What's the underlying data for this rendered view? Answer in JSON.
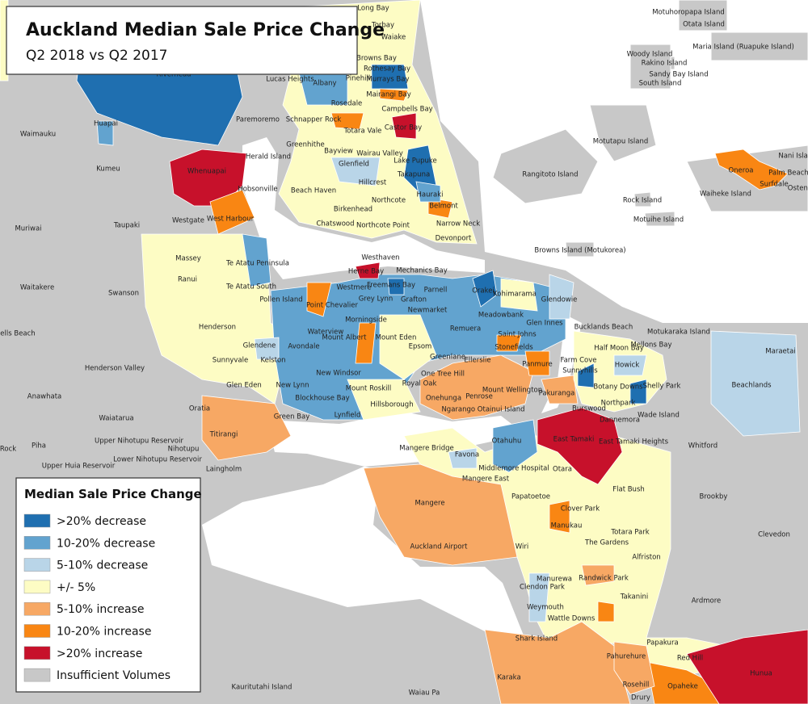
{
  "title": "Auckland Median Sale Price Change",
  "subtitle": "Q2 2018 vs Q2 2017",
  "legend": {
    "title": "Median Sale Price Change",
    "items": [
      {
        "label": ">20% decrease",
        "color": "#1f6fb0"
      },
      {
        "label": "10-20% decrease",
        "color": "#62a3cf"
      },
      {
        "label": "5-10% decrease",
        "color": "#b9d5e8"
      },
      {
        "label": "+/- 5%",
        "color": "#fdfcc4"
      },
      {
        "label": "5-10% increase",
        "color": "#f7a864"
      },
      {
        "label": "10-20% increase",
        "color": "#f98613"
      },
      {
        "label": ">20% increase",
        "color": "#c7112b"
      },
      {
        "label": "Insufficient Volumes",
        "color": "#c8c8c8"
      }
    ]
  },
  "places": [
    "Long Bay",
    "Torbay",
    "Waiake",
    "Browns Bay",
    "Rothesay Bay",
    "Lucas Heights",
    "Albany",
    "Pinehill",
    "Murrays Bay",
    "Riverhead",
    "Mairangi Bay",
    "Rosedale",
    "Campbells Bay",
    "Paremoremo",
    "Schnapper Rock",
    "Totara Vale",
    "Castor Bay",
    "Huapai",
    "Waimauku",
    "Greenhithe",
    "Bayview",
    "Wairau Valley",
    "Herald Island",
    "Lake Pupuke",
    "Glenfield",
    "Kumeu",
    "Takapuna",
    "Whenuapai",
    "Hobsonville",
    "Beach Haven",
    "Hillcrest",
    "Hauraki",
    "Northcote",
    "Belmont",
    "Birkenhead",
    "Westgate",
    "West Harbour",
    "Taupaki",
    "Chatswood",
    "Northcote Point",
    "Narrow Neck",
    "Muriwai",
    "Devonport",
    "Massey",
    "Te Atatu Peninsula",
    "Westhaven",
    "Herne Bay",
    "Mechanics Bay",
    "Browns Island (Motukorea)",
    "Freemans Bay",
    "Orakei",
    "Kohimarama",
    "Westmere",
    "Grey Lynn",
    "Parnell",
    "Glendowie",
    "Waitakere",
    "Ranui",
    "Te Atatu South",
    "Pollen Island",
    "Grafton",
    "Point Chevalier",
    "Newmarket",
    "Swanson",
    "Meadowbank",
    "Remuera",
    "Glen Innes",
    "Bucklands Beach",
    "Morningside",
    "Waterview",
    "Henderson",
    "Mount Albert",
    "Mount Eden",
    "Saint Johns",
    "Motukaraka Island",
    "Glendene",
    "Avondale",
    "Epsom",
    "Stonefields",
    "Half Moon Bay",
    "Mellons Bay",
    "Maraetai",
    "Kelston",
    "Sunnyvale",
    "Greenlane",
    "Ellerslie",
    "Farm Cove",
    "Panmure",
    "Howick",
    "Henderson Valley",
    "New Windsor",
    "One Tree Hill",
    "Sunnyhills",
    "Glen Eden",
    "New Lynn",
    "Mount Roskill",
    "Royal Oak",
    "Mount Wellington",
    "Beachlands",
    "Botany Downs",
    "Shelly Park",
    "Pakuranga",
    "Anawhata",
    "Onehunga",
    "Penrose",
    "Northpark",
    "Blockhouse Bay",
    "Hillsborough",
    "Oratia",
    "Waiatarua",
    "Burswood",
    "Green Bay",
    "Lynfield",
    "Ngarango Otainui Island",
    "Dannemora",
    "Wade Island",
    "Titirangi",
    "Otahuhu",
    "East Tamaki",
    "East Tamaki Heights",
    "Whitford",
    "Upper Nihotupu Reservoir",
    "Rock",
    "Piha",
    "Mangere Bridge",
    "Favona",
    "Nihotupu",
    "Lower Nihotupu Reservoir",
    "Upper Huia Reservoir",
    "Middlemore Hospital",
    "Otara",
    "Laingholm",
    "Mangere East",
    "Flat Bush",
    "Brookby",
    "Mangere",
    "Papatoetoe",
    "Clover Park",
    "Clevedon",
    "Manukau",
    "Totara Park",
    "Auckland Airport",
    "Wiri",
    "The Gardens",
    "Alfriston",
    "Manurewa",
    "Randwick Park",
    "Clendon Park",
    "Takanini",
    "Ardmore",
    "Weymouth",
    "Wattle Downs",
    "Papakura",
    "Shark Island",
    "Pahurehure",
    "Red Hill",
    "Hunua",
    "Karaka",
    "Rosehill",
    "Opaheke",
    "Drury",
    "Kauritutahi Island",
    "Waiau Pa",
    "Motuhoropapa Island",
    "Otata Island",
    "Maria Island (Ruapuke Island)",
    "Woody Island",
    "Rakino Island",
    "Sandy Bay Island",
    "South Island",
    "Motutapu Island",
    "Rangitoto Island",
    "Rock Island",
    "Motuihe Island",
    "Nani Island",
    "Oneroa",
    "Palm Beach",
    "Surfdale",
    "Waiheke Island",
    "Ostend",
    "ells Beach"
  ]
}
